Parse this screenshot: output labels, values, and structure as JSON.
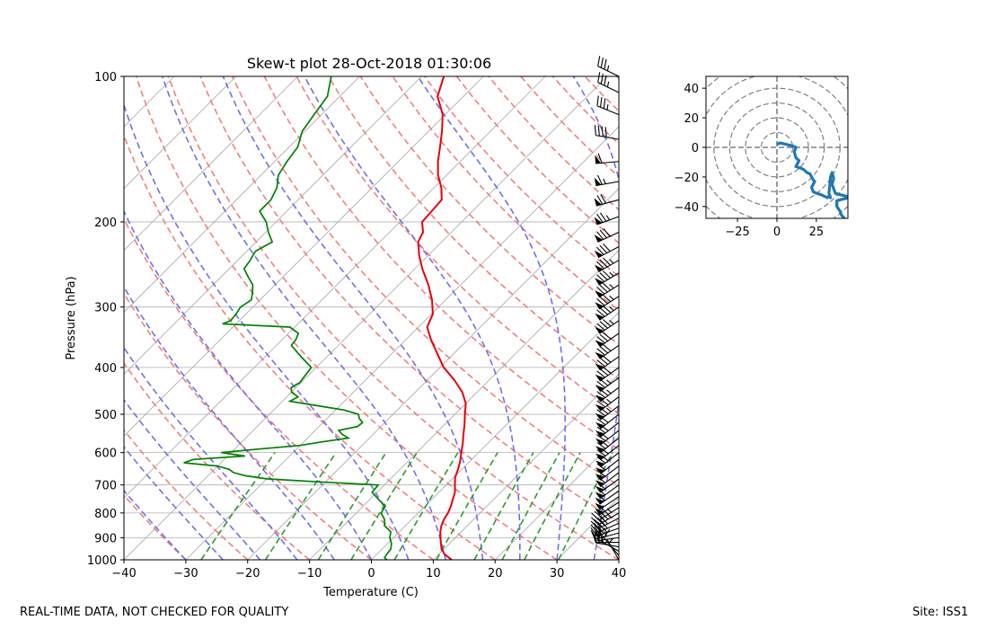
{
  "footer": {
    "left_note": "REAL-TIME DATA, NOT CHECKED FOR QUALITY",
    "right_note": "Site: ISS1"
  },
  "chart_data": [
    {
      "type": "skew-t",
      "title": "Skew-t plot 28-Oct-2018 01:30:06",
      "xlabel": "Temperature (C)",
      "ylabel": "Pressure (hPa)",
      "xlim": [
        -40,
        40
      ],
      "ylim": [
        1000,
        100
      ],
      "y_scale": "log",
      "x_ticks": [
        -40,
        -30,
        -20,
        -10,
        0,
        10,
        20,
        30,
        40
      ],
      "y_ticks": [
        100,
        200,
        300,
        400,
        500,
        600,
        700,
        800,
        900,
        1000
      ],
      "grid": true,
      "colors": {
        "temperature": "#e8000b",
        "dewpoint": "#008000",
        "dry_adiabats": "#f08080",
        "moist_adiabats": "#7070e8",
        "mixing_ratio": "#2e9a2e",
        "isotherms": "#a9a9a9",
        "barbs": "#000000"
      },
      "series": [
        {
          "name": "temperature",
          "points": [
            [
              1000,
              13.0
            ],
            [
              990,
              12.2
            ],
            [
              975,
              11.0
            ],
            [
              950,
              9.6
            ],
            [
              925,
              8.6
            ],
            [
              900,
              7.6
            ],
            [
              875,
              6.6
            ],
            [
              850,
              5.8
            ],
            [
              825,
              5.2
            ],
            [
              800,
              4.8
            ],
            [
              775,
              4.2
            ],
            [
              750,
              3.4
            ],
            [
              725,
              2.6
            ],
            [
              700,
              1.4
            ],
            [
              675,
              0.2
            ],
            [
              650,
              -0.6
            ],
            [
              625,
              -1.6
            ],
            [
              600,
              -2.8
            ],
            [
              575,
              -4.0
            ],
            [
              550,
              -5.4
            ],
            [
              525,
              -6.8
            ],
            [
              500,
              -8.4
            ],
            [
              475,
              -10.0
            ],
            [
              450,
              -12.4
            ],
            [
              425,
              -15.6
            ],
            [
              400,
              -19.4
            ],
            [
              375,
              -22.6
            ],
            [
              350,
              -26.0
            ],
            [
              330,
              -28.6
            ],
            [
              310,
              -29.8
            ],
            [
              290,
              -32.2
            ],
            [
              270,
              -35.2
            ],
            [
              250,
              -38.8
            ],
            [
              235,
              -41.4
            ],
            [
              220,
              -43.8
            ],
            [
              210,
              -44.6
            ],
            [
              200,
              -46.4
            ],
            [
              190,
              -46.6
            ],
            [
              180,
              -46.8
            ],
            [
              170,
              -48.8
            ],
            [
              160,
              -51.4
            ],
            [
              150,
              -53.6
            ],
            [
              140,
              -55.6
            ],
            [
              130,
              -57.8
            ],
            [
              120,
              -60.4
            ],
            [
              110,
              -64.2
            ],
            [
              100,
              -66.4
            ]
          ]
        },
        {
          "name": "dewpoint",
          "points": [
            [
              1000,
              2.5
            ],
            [
              990,
              1.8
            ],
            [
              975,
              1.6
            ],
            [
              950,
              1.4
            ],
            [
              925,
              0.6
            ],
            [
              900,
              -0.6
            ],
            [
              875,
              -1.4
            ],
            [
              850,
              -3.4
            ],
            [
              825,
              -4.4
            ],
            [
              800,
              -6.0
            ],
            [
              775,
              -6.4
            ],
            [
              750,
              -8.6
            ],
            [
              725,
              -10.8
            ],
            [
              700,
              -11.0
            ],
            [
              690,
              -21.0
            ],
            [
              680,
              -30.0
            ],
            [
              670,
              -34.0
            ],
            [
              660,
              -36.4
            ],
            [
              650,
              -37.6
            ],
            [
              640,
              -40.0
            ],
            [
              630,
              -46.0
            ],
            [
              620,
              -45.0
            ],
            [
              610,
              -37.2
            ],
            [
              600,
              -41.6
            ],
            [
              590,
              -36.0
            ],
            [
              580,
              -30.0
            ],
            [
              570,
              -27.0
            ],
            [
              560,
              -23.4
            ],
            [
              550,
              -25.0
            ],
            [
              540,
              -26.2
            ],
            [
              530,
              -23.8
            ],
            [
              520,
              -23.6
            ],
            [
              510,
              -24.8
            ],
            [
              500,
              -25.6
            ],
            [
              490,
              -28.6
            ],
            [
              480,
              -33.6
            ],
            [
              470,
              -38.8
            ],
            [
              460,
              -38.2
            ],
            [
              450,
              -40.0
            ],
            [
              440,
              -40.8
            ],
            [
              430,
              -40.2
            ],
            [
              420,
              -40.4
            ],
            [
              400,
              -40.8
            ],
            [
              380,
              -44.2
            ],
            [
              360,
              -47.6
            ],
            [
              350,
              -47.8
            ],
            [
              340,
              -48.4
            ],
            [
              330,
              -50.8
            ],
            [
              325,
              -62.2
            ],
            [
              320,
              -61.4
            ],
            [
              310,
              -61.6
            ],
            [
              300,
              -62.0
            ],
            [
              290,
              -61.4
            ],
            [
              280,
              -62.4
            ],
            [
              270,
              -63.6
            ],
            [
              260,
              -65.6
            ],
            [
              250,
              -67.6
            ],
            [
              240,
              -68.0
            ],
            [
              230,
              -68.6
            ],
            [
              220,
              -67.4
            ],
            [
              210,
              -69.6
            ],
            [
              200,
              -71.6
            ],
            [
              190,
              -74.4
            ],
            [
              180,
              -74.4
            ],
            [
              170,
              -75.4
            ],
            [
              160,
              -77.2
            ],
            [
              150,
              -78.0
            ],
            [
              140,
              -78.6
            ],
            [
              130,
              -80.4
            ],
            [
              120,
              -81.2
            ],
            [
              110,
              -82.0
            ],
            [
              100,
              -84.6
            ]
          ]
        }
      ],
      "wind_barbs": {
        "pressures": [
          1000,
          980,
          960,
          940,
          920,
          900,
          880,
          860,
          840,
          820,
          800,
          780,
          760,
          740,
          720,
          700,
          680,
          660,
          640,
          620,
          600,
          580,
          560,
          540,
          520,
          500,
          480,
          460,
          440,
          420,
          400,
          380,
          360,
          340,
          320,
          300,
          285,
          270,
          255,
          240,
          225,
          210,
          195,
          180,
          165,
          150,
          135,
          120,
          108,
          100
        ],
        "directions_deg": [
          330,
          320,
          300,
          280,
          270,
          262,
          255,
          250,
          246,
          243,
          240,
          238,
          237,
          236,
          235,
          234,
          234,
          233,
          233,
          232,
          232,
          232,
          232,
          232,
          232,
          232,
          233,
          233,
          233,
          234,
          234,
          235,
          235,
          235,
          236,
          236,
          237,
          238,
          239,
          240,
          242,
          245,
          250,
          255,
          260,
          265,
          280,
          292,
          296,
          296
        ],
        "speeds_kt": [
          5,
          10,
          15,
          25,
          30,
          30,
          35,
          35,
          40,
          40,
          45,
          45,
          50,
          50,
          55,
          55,
          55,
          60,
          60,
          60,
          65,
          65,
          65,
          70,
          70,
          70,
          75,
          75,
          75,
          75,
          80,
          80,
          80,
          80,
          85,
          85,
          85,
          85,
          85,
          85,
          80,
          80,
          75,
          70,
          65,
          60,
          40,
          35,
          35,
          35
        ]
      }
    },
    {
      "type": "hodograph",
      "xlim": [
        -45,
        45
      ],
      "ylim": [
        -48,
        48
      ],
      "x_ticks": [
        -25,
        0,
        25
      ],
      "y_ticks": [
        -40,
        -20,
        0,
        20,
        40
      ],
      "ring_spacing": 10,
      "series_color": "#1f77b4",
      "points": [
        [
          0,
          2
        ],
        [
          2,
          3
        ],
        [
          6,
          2
        ],
        [
          10,
          1
        ],
        [
          12,
          0
        ],
        [
          11,
          -3
        ],
        [
          12,
          -7
        ],
        [
          14,
          -9
        ],
        [
          13,
          -11
        ],
        [
          12,
          -13
        ],
        [
          15,
          -14
        ],
        [
          17,
          -15
        ],
        [
          19,
          -17
        ],
        [
          21,
          -18
        ],
        [
          22,
          -20
        ],
        [
          23,
          -22
        ],
        [
          24,
          -23
        ],
        [
          23,
          -25
        ],
        [
          22,
          -27
        ],
        [
          23,
          -30
        ],
        [
          25,
          -31
        ],
        [
          28,
          -32
        ],
        [
          30,
          -33
        ],
        [
          32,
          -34
        ],
        [
          33,
          -33
        ],
        [
          34,
          -34
        ],
        [
          33,
          -31
        ],
        [
          34,
          -20
        ],
        [
          35,
          -17
        ],
        [
          36,
          -21
        ],
        [
          35,
          -25
        ],
        [
          37,
          -31
        ],
        [
          40,
          -32
        ],
        [
          44,
          -33
        ],
        [
          46,
          -34
        ],
        [
          42,
          -35
        ],
        [
          38,
          -36
        ],
        [
          38,
          -40
        ],
        [
          40,
          -43
        ],
        [
          41,
          -46
        ],
        [
          43,
          -48
        ]
      ]
    }
  ]
}
